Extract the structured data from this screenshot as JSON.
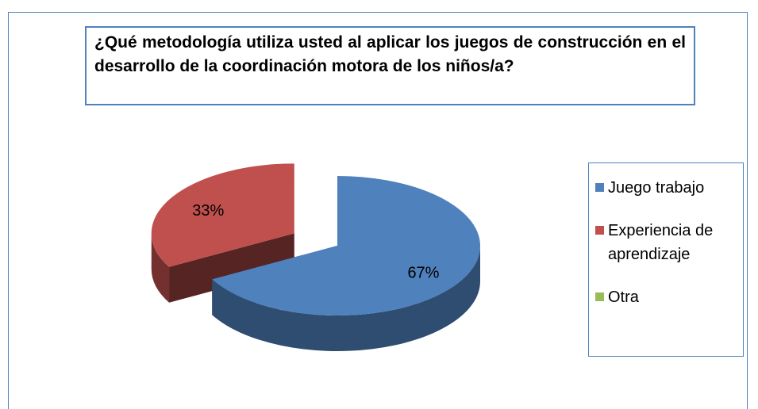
{
  "chart_data": {
    "type": "pie",
    "title": "¿Qué metodología utiliza usted al aplicar los juegos de construcción en el desarrollo de la coordinación motora de los niños/a?",
    "categories": [
      "Juego trabajo",
      "Experiencia de aprendizaje",
      "Otra"
    ],
    "values": [
      67,
      33,
      0
    ],
    "value_labels": [
      "67%",
      "33%",
      null
    ],
    "colors": [
      "#4f81bd",
      "#c0504d",
      "#9bbb59"
    ],
    "exploded": [
      false,
      true,
      false
    ],
    "legend": "right"
  }
}
